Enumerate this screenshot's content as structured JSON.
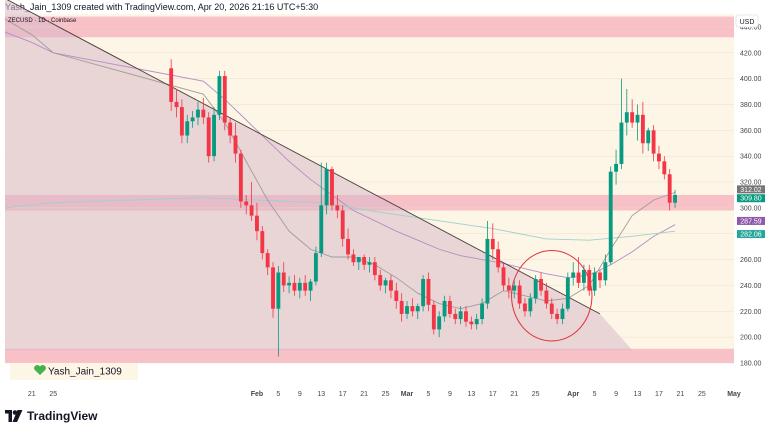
{
  "header": {
    "attribution": "Yash_Jain_1309 created with TradingView.com, Apr 20, 2026 21:16 UTC+5:30"
  },
  "symbol_label": "ZECUSD · 1D · Coinbase",
  "currency": "USD",
  "watermark": {
    "user": "Yash_Jain_1309",
    "icon": "heart-icon",
    "color": "#42b34a"
  },
  "footer": {
    "brand": "TradingView",
    "icon": "tradingview-logo-icon"
  },
  "colors": {
    "up": "#089981",
    "down": "#f23645",
    "zone": "#f7b6c1",
    "triangle": "#d9b8c8",
    "background": "#fdf5e6",
    "ma_purple": "#b48ec4",
    "ma_teal": "#9fd1c9",
    "ma_grey": "#9e9e9e"
  },
  "chart_data": {
    "type": "candlestick",
    "y_axis": {
      "range": [
        180,
        450
      ],
      "ticks": [
        180,
        200,
        220,
        240,
        260,
        280,
        300,
        320,
        340,
        360,
        380,
        400,
        420,
        440
      ]
    },
    "x_axis": {
      "range": [
        "2025-12-16",
        "2026-05-01"
      ],
      "ticks": [
        {
          "label": "21",
          "date": "2025-12-21"
        },
        {
          "label": "25",
          "date": "2025-12-25"
        },
        {
          "label": "Feb",
          "date": "2026-02-01"
        },
        {
          "label": "5",
          "date": "2026-02-05"
        },
        {
          "label": "9",
          "date": "2026-02-09"
        },
        {
          "label": "13",
          "date": "2026-02-13"
        },
        {
          "label": "17",
          "date": "2026-02-17"
        },
        {
          "label": "21",
          "date": "2026-02-21"
        },
        {
          "label": "25",
          "date": "2026-02-25"
        },
        {
          "label": "Mar",
          "date": "2026-03-01"
        },
        {
          "label": "5",
          "date": "2026-03-05"
        },
        {
          "label": "9",
          "date": "2026-03-09"
        },
        {
          "label": "13",
          "date": "2026-03-13"
        },
        {
          "label": "17",
          "date": "2026-03-17"
        },
        {
          "label": "21",
          "date": "2026-03-21"
        },
        {
          "label": "25",
          "date": "2026-03-25"
        },
        {
          "label": "Apr",
          "date": "2026-04-01"
        },
        {
          "label": "5",
          "date": "2026-04-05"
        },
        {
          "label": "9",
          "date": "2026-04-09"
        },
        {
          "label": "13",
          "date": "2026-04-13"
        },
        {
          "label": "17",
          "date": "2026-04-17"
        },
        {
          "label": "21",
          "date": "2026-04-21"
        },
        {
          "label": "25",
          "date": "2026-04-25"
        },
        {
          "label": "May",
          "date": "2026-05-01"
        }
      ]
    },
    "candles": [
      {
        "date": "2026-01-16",
        "o": 408,
        "h": 415,
        "l": 375,
        "c": 382
      },
      {
        "date": "2026-01-17",
        "o": 382,
        "h": 392,
        "l": 370,
        "c": 378
      },
      {
        "date": "2026-01-18",
        "o": 378,
        "h": 384,
        "l": 350,
        "c": 356
      },
      {
        "date": "2026-01-19",
        "o": 356,
        "h": 372,
        "l": 350,
        "c": 367
      },
      {
        "date": "2026-01-20",
        "o": 367,
        "h": 375,
        "l": 362,
        "c": 370
      },
      {
        "date": "2026-01-21",
        "o": 370,
        "h": 382,
        "l": 364,
        "c": 376
      },
      {
        "date": "2026-01-22",
        "o": 376,
        "h": 385,
        "l": 365,
        "c": 370
      },
      {
        "date": "2026-01-23",
        "o": 370,
        "h": 374,
        "l": 335,
        "c": 340
      },
      {
        "date": "2026-01-24",
        "o": 340,
        "h": 378,
        "l": 336,
        "c": 372
      },
      {
        "date": "2026-01-25",
        "o": 372,
        "h": 406,
        "l": 368,
        "c": 402
      },
      {
        "date": "2026-01-26",
        "o": 402,
        "h": 406,
        "l": 360,
        "c": 366
      },
      {
        "date": "2026-01-27",
        "o": 366,
        "h": 370,
        "l": 350,
        "c": 356
      },
      {
        "date": "2026-01-28",
        "o": 356,
        "h": 366,
        "l": 335,
        "c": 342
      },
      {
        "date": "2026-01-29",
        "o": 342,
        "h": 345,
        "l": 300,
        "c": 305
      },
      {
        "date": "2026-01-30",
        "o": 305,
        "h": 310,
        "l": 295,
        "c": 302
      },
      {
        "date": "2026-01-31",
        "o": 302,
        "h": 320,
        "l": 290,
        "c": 294
      },
      {
        "date": "2026-02-01",
        "o": 294,
        "h": 304,
        "l": 275,
        "c": 282
      },
      {
        "date": "2026-02-02",
        "o": 282,
        "h": 286,
        "l": 260,
        "c": 265
      },
      {
        "date": "2026-02-03",
        "o": 265,
        "h": 268,
        "l": 248,
        "c": 254
      },
      {
        "date": "2026-02-04",
        "o": 254,
        "h": 258,
        "l": 215,
        "c": 222
      },
      {
        "date": "2026-02-05",
        "o": 222,
        "h": 255,
        "l": 185,
        "c": 250
      },
      {
        "date": "2026-02-06",
        "o": 250,
        "h": 258,
        "l": 235,
        "c": 240
      },
      {
        "date": "2026-02-07",
        "o": 240,
        "h": 247,
        "l": 234,
        "c": 242
      },
      {
        "date": "2026-02-08",
        "o": 242,
        "h": 248,
        "l": 232,
        "c": 236
      },
      {
        "date": "2026-02-09",
        "o": 236,
        "h": 246,
        "l": 230,
        "c": 242
      },
      {
        "date": "2026-02-10",
        "o": 242,
        "h": 248,
        "l": 232,
        "c": 236
      },
      {
        "date": "2026-02-11",
        "o": 236,
        "h": 245,
        "l": 228,
        "c": 243
      },
      {
        "date": "2026-02-12",
        "o": 243,
        "h": 270,
        "l": 240,
        "c": 265
      },
      {
        "date": "2026-02-13",
        "o": 265,
        "h": 335,
        "l": 262,
        "c": 302
      },
      {
        "date": "2026-02-14",
        "o": 302,
        "h": 335,
        "l": 295,
        "c": 330
      },
      {
        "date": "2026-02-15",
        "o": 330,
        "h": 332,
        "l": 298,
        "c": 302
      },
      {
        "date": "2026-02-16",
        "o": 302,
        "h": 310,
        "l": 292,
        "c": 298
      },
      {
        "date": "2026-02-17",
        "o": 298,
        "h": 302,
        "l": 270,
        "c": 276
      },
      {
        "date": "2026-02-18",
        "o": 276,
        "h": 284,
        "l": 260,
        "c": 264
      },
      {
        "date": "2026-02-19",
        "o": 264,
        "h": 268,
        "l": 255,
        "c": 258
      },
      {
        "date": "2026-02-20",
        "o": 258,
        "h": 262,
        "l": 252,
        "c": 262
      },
      {
        "date": "2026-02-21",
        "o": 262,
        "h": 264,
        "l": 252,
        "c": 256
      },
      {
        "date": "2026-02-22",
        "o": 256,
        "h": 262,
        "l": 250,
        "c": 258
      },
      {
        "date": "2026-02-23",
        "o": 258,
        "h": 262,
        "l": 244,
        "c": 248
      },
      {
        "date": "2026-02-24",
        "o": 248,
        "h": 252,
        "l": 236,
        "c": 240
      },
      {
        "date": "2026-02-25",
        "o": 240,
        "h": 246,
        "l": 234,
        "c": 244
      },
      {
        "date": "2026-02-26",
        "o": 244,
        "h": 248,
        "l": 230,
        "c": 236
      },
      {
        "date": "2026-02-27",
        "o": 236,
        "h": 242,
        "l": 222,
        "c": 228
      },
      {
        "date": "2026-02-28",
        "o": 228,
        "h": 234,
        "l": 212,
        "c": 218
      },
      {
        "date": "2026-03-01",
        "o": 218,
        "h": 228,
        "l": 214,
        "c": 224
      },
      {
        "date": "2026-03-02",
        "o": 224,
        "h": 230,
        "l": 216,
        "c": 220
      },
      {
        "date": "2026-03-03",
        "o": 220,
        "h": 226,
        "l": 214,
        "c": 224
      },
      {
        "date": "2026-03-04",
        "o": 224,
        "h": 248,
        "l": 220,
        "c": 245
      },
      {
        "date": "2026-03-05",
        "o": 245,
        "h": 250,
        "l": 220,
        "c": 225
      },
      {
        "date": "2026-03-06",
        "o": 225,
        "h": 228,
        "l": 202,
        "c": 206
      },
      {
        "date": "2026-03-07",
        "o": 206,
        "h": 220,
        "l": 200,
        "c": 216
      },
      {
        "date": "2026-03-08",
        "o": 216,
        "h": 232,
        "l": 212,
        "c": 228
      },
      {
        "date": "2026-03-09",
        "o": 228,
        "h": 232,
        "l": 215,
        "c": 218
      },
      {
        "date": "2026-03-10",
        "o": 218,
        "h": 222,
        "l": 210,
        "c": 214
      },
      {
        "date": "2026-03-11",
        "o": 214,
        "h": 224,
        "l": 210,
        "c": 220
      },
      {
        "date": "2026-03-12",
        "o": 220,
        "h": 224,
        "l": 208,
        "c": 212
      },
      {
        "date": "2026-03-13",
        "o": 212,
        "h": 216,
        "l": 206,
        "c": 210
      },
      {
        "date": "2026-03-14",
        "o": 210,
        "h": 218,
        "l": 206,
        "c": 214
      },
      {
        "date": "2026-03-15",
        "o": 214,
        "h": 230,
        "l": 210,
        "c": 226
      },
      {
        "date": "2026-03-16",
        "o": 226,
        "h": 290,
        "l": 222,
        "c": 276
      },
      {
        "date": "2026-03-17",
        "o": 276,
        "h": 288,
        "l": 260,
        "c": 268
      },
      {
        "date": "2026-03-18",
        "o": 268,
        "h": 274,
        "l": 250,
        "c": 254
      },
      {
        "date": "2026-03-19",
        "o": 254,
        "h": 258,
        "l": 236,
        "c": 240
      },
      {
        "date": "2026-03-20",
        "o": 240,
        "h": 246,
        "l": 230,
        "c": 236
      },
      {
        "date": "2026-03-21",
        "o": 236,
        "h": 244,
        "l": 230,
        "c": 240
      },
      {
        "date": "2026-03-22",
        "o": 240,
        "h": 244,
        "l": 222,
        "c": 226
      },
      {
        "date": "2026-03-23",
        "o": 226,
        "h": 230,
        "l": 216,
        "c": 220
      },
      {
        "date": "2026-03-24",
        "o": 220,
        "h": 234,
        "l": 216,
        "c": 230
      },
      {
        "date": "2026-03-25",
        "o": 230,
        "h": 248,
        "l": 226,
        "c": 245
      },
      {
        "date": "2026-03-26",
        "o": 245,
        "h": 250,
        "l": 232,
        "c": 236
      },
      {
        "date": "2026-03-27",
        "o": 236,
        "h": 242,
        "l": 222,
        "c": 226
      },
      {
        "date": "2026-03-28",
        "o": 226,
        "h": 230,
        "l": 214,
        "c": 218
      },
      {
        "date": "2026-03-29",
        "o": 218,
        "h": 222,
        "l": 210,
        "c": 214
      },
      {
        "date": "2026-03-30",
        "o": 214,
        "h": 226,
        "l": 210,
        "c": 222
      },
      {
        "date": "2026-03-31",
        "o": 222,
        "h": 250,
        "l": 220,
        "c": 246
      },
      {
        "date": "2026-04-01",
        "o": 246,
        "h": 258,
        "l": 240,
        "c": 250
      },
      {
        "date": "2026-04-02",
        "o": 250,
        "h": 262,
        "l": 238,
        "c": 242
      },
      {
        "date": "2026-04-03",
        "o": 242,
        "h": 256,
        "l": 236,
        "c": 252
      },
      {
        "date": "2026-04-04",
        "o": 252,
        "h": 256,
        "l": 232,
        "c": 236
      },
      {
        "date": "2026-04-05",
        "o": 236,
        "h": 254,
        "l": 232,
        "c": 250
      },
      {
        "date": "2026-04-06",
        "o": 250,
        "h": 252,
        "l": 238,
        "c": 244
      },
      {
        "date": "2026-04-07",
        "o": 244,
        "h": 264,
        "l": 240,
        "c": 258
      },
      {
        "date": "2026-04-08",
        "o": 258,
        "h": 332,
        "l": 256,
        "c": 328
      },
      {
        "date": "2026-04-09",
        "o": 328,
        "h": 345,
        "l": 318,
        "c": 334
      },
      {
        "date": "2026-04-10",
        "o": 334,
        "h": 400,
        "l": 330,
        "c": 366
      },
      {
        "date": "2026-04-11",
        "o": 366,
        "h": 392,
        "l": 356,
        "c": 374
      },
      {
        "date": "2026-04-12",
        "o": 374,
        "h": 384,
        "l": 362,
        "c": 366
      },
      {
        "date": "2026-04-13",
        "o": 366,
        "h": 380,
        "l": 352,
        "c": 372
      },
      {
        "date": "2026-04-14",
        "o": 372,
        "h": 382,
        "l": 342,
        "c": 350
      },
      {
        "date": "2026-04-15",
        "o": 350,
        "h": 362,
        "l": 344,
        "c": 360
      },
      {
        "date": "2026-04-16",
        "o": 360,
        "h": 364,
        "l": 336,
        "c": 342
      },
      {
        "date": "2026-04-17",
        "o": 342,
        "h": 348,
        "l": 330,
        "c": 336
      },
      {
        "date": "2026-04-18",
        "o": 336,
        "h": 340,
        "l": 322,
        "c": 326
      },
      {
        "date": "2026-04-19",
        "o": 326,
        "h": 330,
        "l": 298,
        "c": 304
      },
      {
        "date": "2026-04-20",
        "o": 304,
        "h": 314,
        "l": 300,
        "c": 310
      }
    ],
    "moving_averages": [
      {
        "color": "#b48ec4",
        "points": [
          [
            "2025-12-16",
            436
          ],
          [
            "2025-12-21",
            428
          ],
          [
            "2025-12-25",
            420
          ],
          [
            "2026-01-22",
            398
          ],
          [
            "2026-01-26",
            384
          ],
          [
            "2026-01-30",
            368
          ],
          [
            "2026-02-03",
            352
          ],
          [
            "2026-02-07",
            336
          ],
          [
            "2026-02-11",
            322
          ],
          [
            "2026-02-15",
            310
          ],
          [
            "2026-02-19",
            298
          ],
          [
            "2026-02-23",
            290
          ],
          [
            "2026-02-27",
            282
          ],
          [
            "2026-03-03",
            275
          ],
          [
            "2026-03-07",
            268
          ],
          [
            "2026-03-11",
            263
          ],
          [
            "2026-03-15",
            260
          ],
          [
            "2026-03-19",
            257
          ],
          [
            "2026-03-23",
            253
          ],
          [
            "2026-03-27",
            249
          ],
          [
            "2026-03-31",
            246
          ],
          [
            "2026-04-04",
            248
          ],
          [
            "2026-04-08",
            256
          ],
          [
            "2026-04-12",
            266
          ],
          [
            "2026-04-16",
            278
          ],
          [
            "2026-04-20",
            287
          ]
        ]
      },
      {
        "color": "#9fd1c9",
        "points": [
          [
            "2025-12-16",
            300
          ],
          [
            "2025-12-25",
            304
          ],
          [
            "2026-01-22",
            308
          ],
          [
            "2026-02-01",
            306
          ],
          [
            "2026-02-13",
            304
          ],
          [
            "2026-02-25",
            296
          ],
          [
            "2026-03-07",
            290
          ],
          [
            "2026-03-17",
            284
          ],
          [
            "2026-03-27",
            276
          ],
          [
            "2026-04-04",
            275
          ],
          [
            "2026-04-12",
            278
          ],
          [
            "2026-04-20",
            282
          ]
        ]
      },
      {
        "color": "#9e9e9e",
        "points": [
          [
            "2025-12-16",
            446
          ],
          [
            "2025-12-21",
            434
          ],
          [
            "2025-12-25",
            420
          ],
          [
            "2026-01-22",
            388
          ],
          [
            "2026-01-26",
            366
          ],
          [
            "2026-01-30",
            336
          ],
          [
            "2026-02-03",
            306
          ],
          [
            "2026-02-07",
            282
          ],
          [
            "2026-02-11",
            268
          ],
          [
            "2026-02-15",
            262
          ],
          [
            "2026-02-19",
            262
          ],
          [
            "2026-02-23",
            256
          ],
          [
            "2026-02-27",
            246
          ],
          [
            "2026-03-03",
            234
          ],
          [
            "2026-03-07",
            226
          ],
          [
            "2026-03-11",
            222
          ],
          [
            "2026-03-15",
            226
          ],
          [
            "2026-03-19",
            236
          ],
          [
            "2026-03-23",
            232
          ],
          [
            "2026-03-27",
            228
          ],
          [
            "2026-03-31",
            230
          ],
          [
            "2026-04-04",
            240
          ],
          [
            "2026-04-08",
            268
          ],
          [
            "2026-04-12",
            294
          ],
          [
            "2026-04-16",
            306
          ],
          [
            "2026-04-20",
            312
          ]
        ]
      }
    ],
    "zones": [
      {
        "from": 432,
        "to": 448
      },
      {
        "from": 298,
        "to": 310
      },
      {
        "from": 180,
        "to": 191
      }
    ],
    "trendline": {
      "from": [
        "2025-12-16",
        462
      ],
      "to": [
        "2026-04-06",
        218
      ]
    },
    "triangle": {
      "points": [
        [
          "2025-12-16",
          462
        ],
        [
          "2026-04-06",
          218
        ],
        [
          "2026-04-12",
          190
        ],
        [
          "2025-12-16",
          190
        ]
      ]
    },
    "circle_annotation": {
      "center": [
        "2026-03-28",
        232
      ],
      "radius_x_days": 7.5,
      "radius_y_value": 35,
      "color": "#e03040"
    },
    "price_labels": [
      {
        "text": "312.02",
        "value": 312.02,
        "color": "#757575"
      },
      {
        "text": "309.80",
        "value": 309.8,
        "color": "#089981"
      },
      {
        "text": "287.59",
        "value": 287.59,
        "color": "#8e5aaa"
      },
      {
        "text": "282.06",
        "value": 282.06,
        "color": "#26a69a"
      }
    ]
  }
}
